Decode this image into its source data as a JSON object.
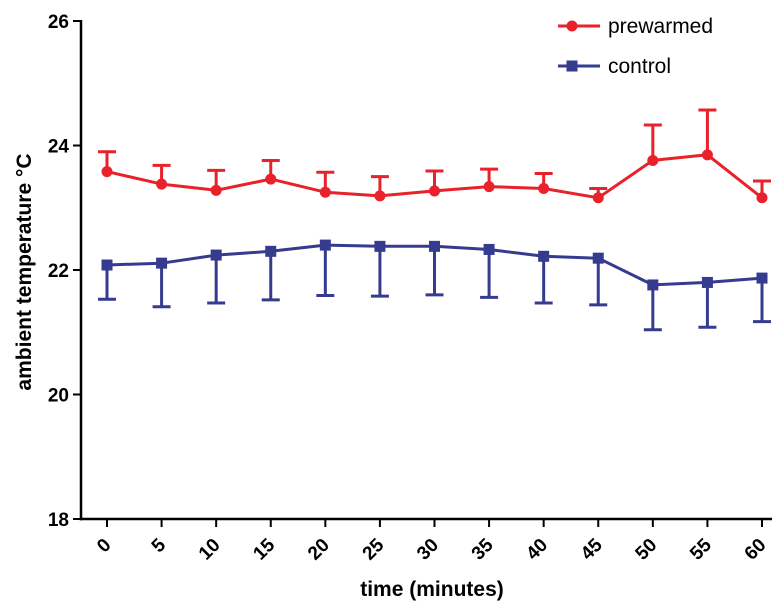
{
  "chart_data": {
    "type": "line",
    "xlabel": "time (minutes)",
    "ylabel": "ambient temperature °C",
    "x": [
      0,
      5,
      10,
      15,
      20,
      25,
      30,
      35,
      40,
      45,
      50,
      55,
      60
    ],
    "x_tick_labels": [
      "0",
      "5",
      "10",
      "15",
      "20",
      "25",
      "30",
      "35",
      "40",
      "45",
      "50",
      "55",
      "60"
    ],
    "y_ticks": [
      18,
      20,
      22,
      24,
      26
    ],
    "y_tick_labels": [
      "18",
      "20",
      "22",
      "24",
      "26"
    ],
    "ylim": [
      18,
      26
    ],
    "grid": false,
    "legend_position": "top-right",
    "series": [
      {
        "name": "prewarmed",
        "color": "#e8212b",
        "marker": "circle",
        "error_direction": "up",
        "values": [
          23.58,
          23.38,
          23.28,
          23.46,
          23.25,
          23.19,
          23.27,
          23.34,
          23.31,
          23.16,
          23.76,
          23.85,
          23.16
        ],
        "errors": [
          0.32,
          0.3,
          0.32,
          0.3,
          0.32,
          0.31,
          0.32,
          0.28,
          0.24,
          0.15,
          0.57,
          0.72,
          0.27
        ]
      },
      {
        "name": "control",
        "color": "#353b8f",
        "marker": "square",
        "error_direction": "down",
        "values": [
          22.08,
          22.11,
          22.24,
          22.3,
          22.4,
          22.38,
          22.38,
          22.33,
          22.22,
          22.19,
          21.76,
          21.8,
          21.87
        ],
        "errors": [
          0.55,
          0.7,
          0.77,
          0.78,
          0.81,
          0.8,
          0.78,
          0.77,
          0.75,
          0.75,
          0.72,
          0.72,
          0.7
        ]
      }
    ]
  }
}
